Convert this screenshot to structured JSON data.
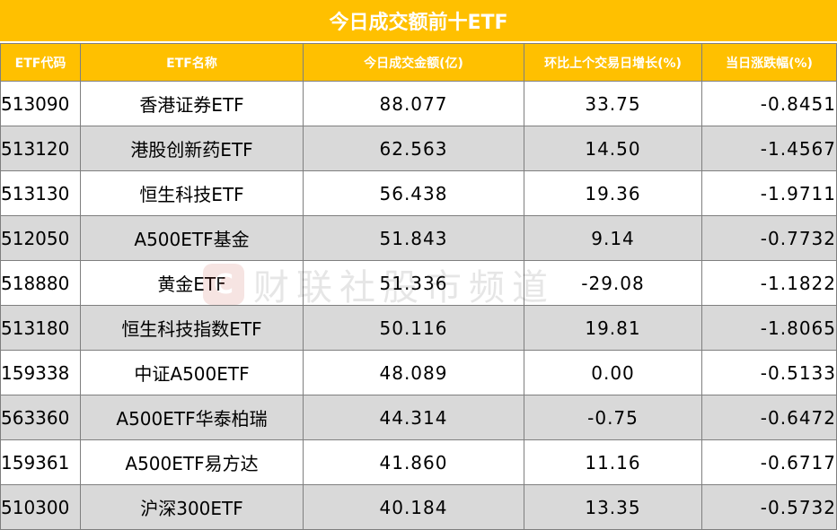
{
  "title": "今日成交额前十ETF",
  "headers": [
    "ETF代码",
    "ETF名称",
    "今日成交金额(亿)",
    "环比上个交易日增长(%)",
    "当日涨跌幅(%)"
  ],
  "rows": [
    {
      "code": "513090",
      "name": "香港证券ETF",
      "amount": "88.077",
      "growth": "33.75",
      "change": "-0.8451"
    },
    {
      "code": "513120",
      "name": "港股创新药ETF",
      "amount": "62.563",
      "growth": "14.50",
      "change": "-1.4567"
    },
    {
      "code": "513130",
      "name": "恒生科技ETF",
      "amount": "56.438",
      "growth": "19.36",
      "change": "-1.9711"
    },
    {
      "code": "512050",
      "name": "A500ETF基金",
      "amount": "51.843",
      "growth": "9.14",
      "change": "-0.7732"
    },
    {
      "code": "518880",
      "name": "黄金ETF",
      "amount": "51.336",
      "growth": "-29.08",
      "change": "-1.1822"
    },
    {
      "code": "513180",
      "name": "恒生科技指数ETF",
      "amount": "50.116",
      "growth": "19.81",
      "change": "-1.8065"
    },
    {
      "code": "159338",
      "name": "中证A500ETF",
      "amount": "48.089",
      "growth": "0.00",
      "change": "-0.5133"
    },
    {
      "code": "563360",
      "name": "A500ETF华泰柏瑞",
      "amount": "44.314",
      "growth": "-0.75",
      "change": "-0.6472"
    },
    {
      "code": "159361",
      "name": "A500ETF易方达",
      "amount": "41.860",
      "growth": "11.16",
      "change": "-0.6717"
    },
    {
      "code": "510300",
      "name": "沪深300ETF",
      "amount": "40.184",
      "growth": "13.35",
      "change": "-0.5732"
    }
  ],
  "watermark": {
    "logo": "C",
    "text": "财联社股市频道"
  },
  "colors": {
    "header": "#ffc000",
    "alt_row": "#d9d9d9",
    "border": "#7f7f7f"
  }
}
